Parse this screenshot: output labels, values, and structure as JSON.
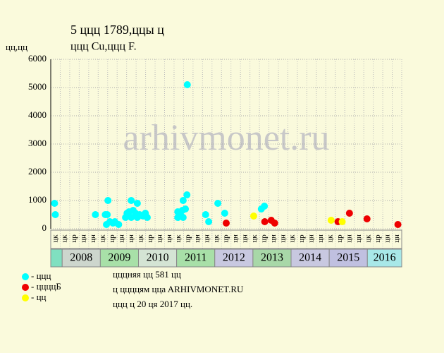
{
  "chart_data": {
    "type": "scatter",
    "title": "5 ццц 1789,ццы ц",
    "subtitle": "ццц Cu,ццц F.",
    "y_label": "цц,цц",
    "watermark": "arhivmonet.ru",
    "xlim": [
      2007.7,
      2016.9
    ],
    "ylim": [
      0,
      6000
    ],
    "yticks": [
      0,
      1000,
      2000,
      3000,
      4000,
      5000,
      6000
    ],
    "grid": true,
    "years": [
      2008,
      2009,
      2010,
      2011,
      2012,
      2013,
      2014,
      2015,
      2016
    ],
    "year_colors": [
      "#cdd6cd",
      "#a8e0a8",
      "#d4e4d4",
      "#a8e0a8",
      "#c8c8e0",
      "#a8d8a8",
      "#c8c8e0",
      "#c0c0e0",
      "#a8e8e8"
    ],
    "first_cell_color": "#80e0c0",
    "quarter_labels": [
      "цк",
      "цк",
      "цр",
      "цн",
      "цн",
      "цк",
      "цр",
      "цн",
      "цн",
      "цк",
      "цр",
      "цн",
      "цн",
      "цк",
      "цр",
      "цн",
      "цн",
      "цк",
      "цр",
      "цн",
      "цн",
      "цк",
      "цр",
      "цн",
      "цн",
      "цк",
      "цр",
      "цн",
      "цн",
      "цк",
      "цр",
      "цн",
      "цн",
      "цк",
      "цр",
      "цн",
      "цн"
    ],
    "series": [
      {
        "name": "- ццц",
        "color": "#00ffff",
        "x": [
          2007.8,
          2007.82,
          2008.87,
          2009.13,
          2009.2,
          2009.18,
          2009.16,
          2009.25,
          2009.33,
          2009.38,
          2009.48,
          2009.66,
          2009.7,
          2009.75,
          2009.81,
          2009.81,
          2009.86,
          2009.92,
          2009.97,
          2009.97,
          2010.03,
          2010.12,
          2010.18,
          2010.23,
          2011.03,
          2011.03,
          2011.1,
          2011.15,
          2011.17,
          2011.17,
          2011.23,
          2011.27,
          2011.28,
          2011.76,
          2011.84,
          2012.08,
          2012.26,
          2013.22,
          2013.3
        ],
        "values": [
          900,
          500,
          500,
          500,
          1000,
          500,
          150,
          250,
          200,
          250,
          150,
          400,
          550,
          600,
          1000,
          400,
          650,
          550,
          900,
          400,
          500,
          450,
          550,
          400,
          600,
          400,
          500,
          650,
          1000,
          400,
          700,
          1200,
          5100,
          500,
          250,
          900,
          550,
          700,
          800
        ]
      },
      {
        "name": "- ццццБ",
        "color": "#ee0000",
        "x": [
          2012.3,
          2013.31,
          2013.48,
          2013.57,
          2015.23,
          2015.53,
          2015.99,
          2016.8
        ],
        "values": [
          200,
          250,
          300,
          200,
          250,
          550,
          350,
          150
        ]
      },
      {
        "name": "- цц",
        "color": "#ffff00",
        "x": [
          2013.02,
          2015.05,
          2015.34
        ],
        "values": [
          450,
          300,
          250
        ]
      }
    ],
    "notes": [
      "цццняя цц 581 цц",
      "ц ццццям ццa ARHIVMONET.RU",
      "ццц ц 20 ця 2017 цц."
    ]
  }
}
